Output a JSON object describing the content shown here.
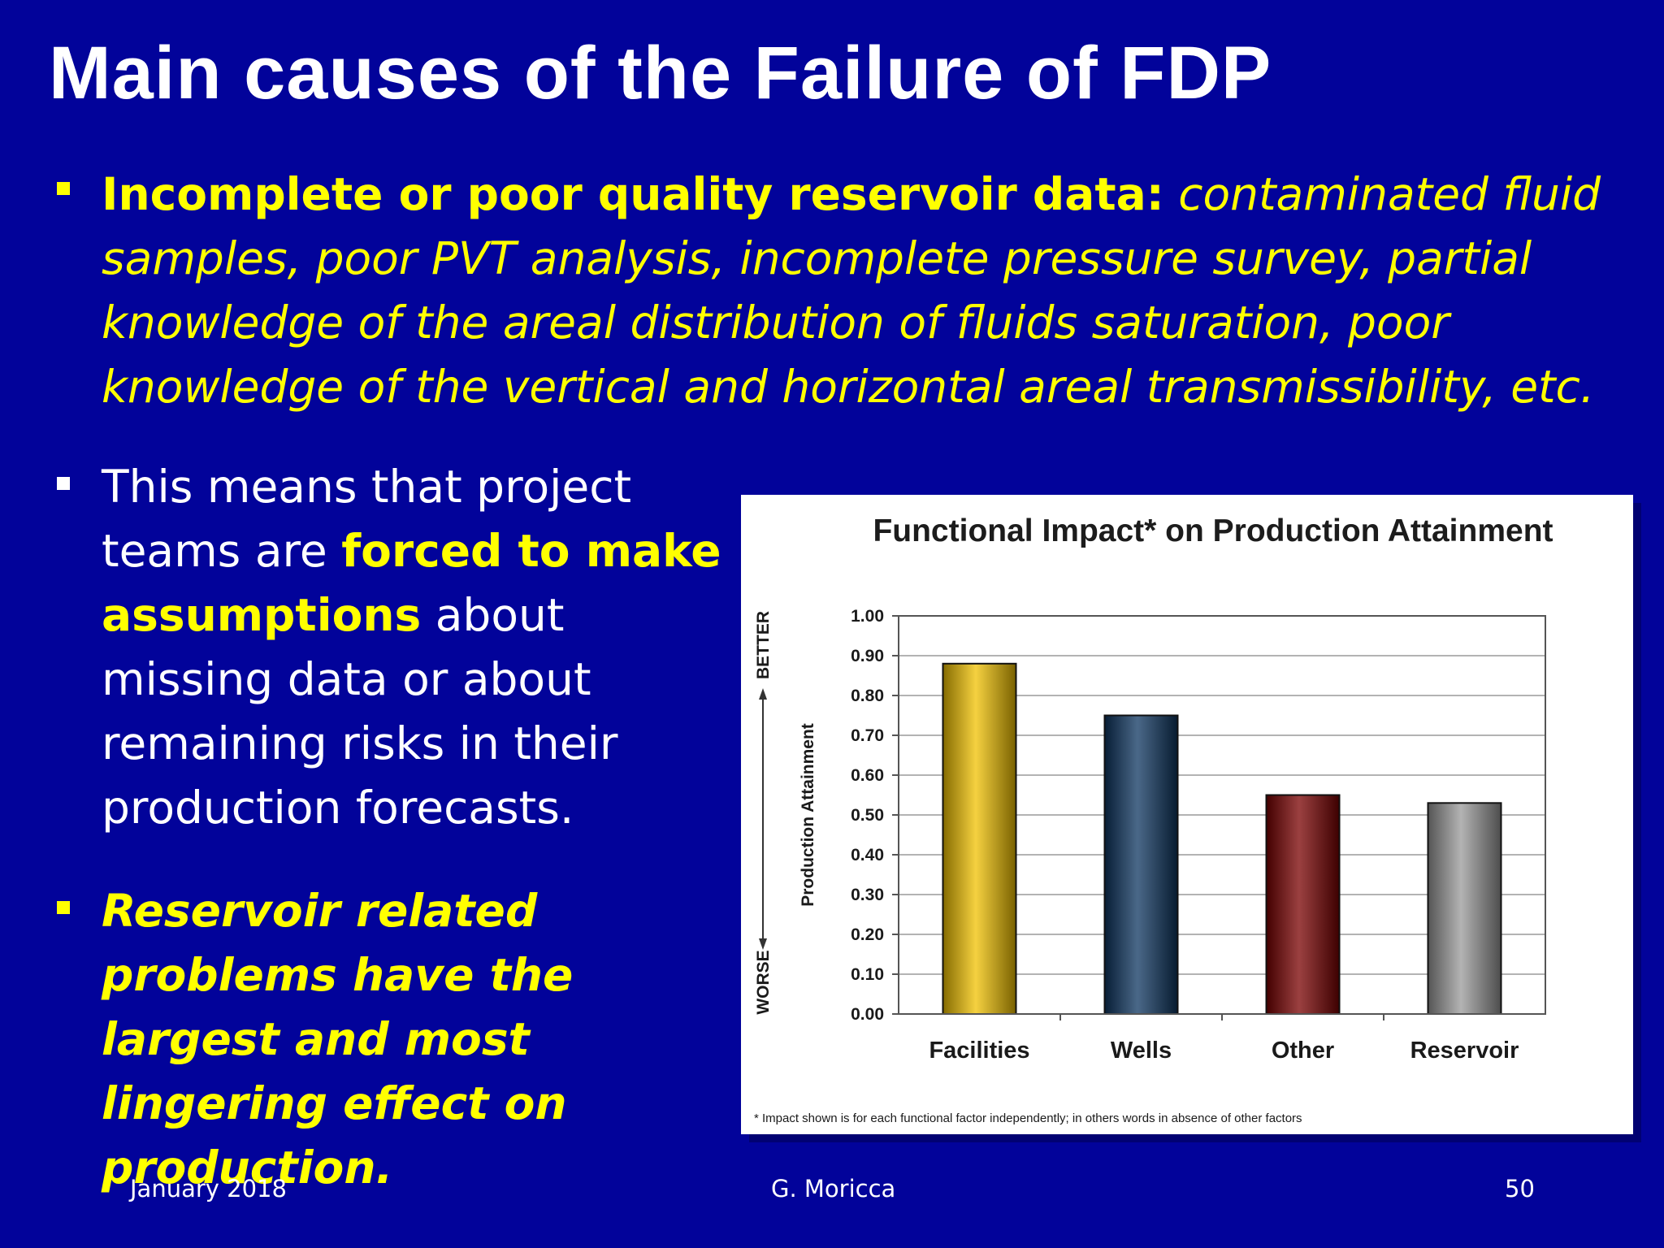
{
  "slide": {
    "title": "Main causes  of the Failure of FDP",
    "bullets": [
      {
        "bold_lead": "Incomplete or poor quality reservoir data:",
        "italic_text": " contaminated fluid samples, poor PVT analysis, incomplete pressure survey, partial knowledge of the areal distribution of fluids saturation, poor knowledge of the vertical and horizontal areal transmissibility, etc."
      },
      {
        "text_before": "This  means that project teams are ",
        "highlight": "forced to make assumptions",
        "text_after": " about missing data or about remaining risks in their production forecasts."
      },
      {
        "text": "Reservoir related problems have the largest and most lingering effect on production."
      }
    ],
    "footer": {
      "date": "January 2018",
      "author": "G. Moricca",
      "page_number": "50"
    }
  },
  "colors": {
    "background": "#02039a",
    "highlight": "#ffff00",
    "text": "#ffffff"
  },
  "chart_data": {
    "type": "bar",
    "title": "Functional Impact* on Production Attainment",
    "categories": [
      "Facilities",
      "Wells",
      "Other",
      "Reservoir"
    ],
    "values": [
      0.88,
      0.75,
      0.55,
      0.53
    ],
    "bar_colors": [
      "#f2c200",
      "#0d3560",
      "#7a0000",
      "#9a9a9a"
    ],
    "ylabel": "Production Attainment",
    "ylim": [
      0,
      1.0
    ],
    "yticks": [
      "0.00",
      "0.10",
      "0.20",
      "0.30",
      "0.40",
      "0.50",
      "0.60",
      "0.70",
      "0.80",
      "0.90",
      "1.00"
    ],
    "side_labels": {
      "top": "BETTER",
      "bottom": "WORSE"
    },
    "footnote": "* Impact shown is for each functional factor independently; in others words in absence of other factors",
    "grid": true
  }
}
